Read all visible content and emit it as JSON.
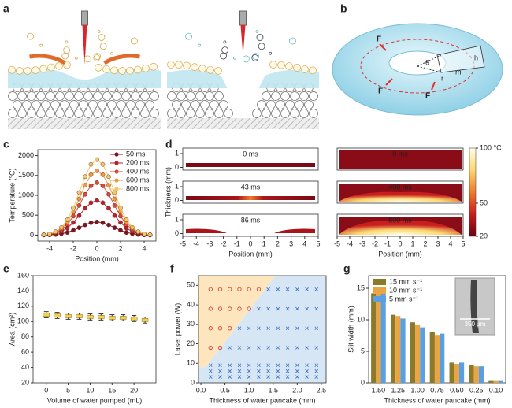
{
  "panel_labels": [
    "a",
    "b",
    "c",
    "d",
    "e",
    "f",
    "g"
  ],
  "diagram_b": {
    "labels": [
      "F",
      "F",
      "F",
      "θ",
      "r",
      "m",
      "h"
    ]
  },
  "chart_data": [
    {
      "type": "line",
      "ylabel": "Temperature (°C)",
      "xlabel": "Position (mm)",
      "x": [
        -4.5,
        -4,
        -3.5,
        -3,
        -2.5,
        -2,
        -1.5,
        -1,
        -0.5,
        0,
        0.5,
        1,
        1.5,
        2,
        2.5,
        3,
        3.5,
        4,
        4.5
      ],
      "xlim": [
        -5,
        5
      ],
      "xticks": [
        -4,
        -2,
        0,
        2,
        4
      ],
      "ylim": [
        -150,
        2150
      ],
      "yticks": [
        0,
        500,
        1000,
        1500,
        2000
      ],
      "series": [
        {
          "name": "50 ms",
          "color": "#7d1520",
          "values": [
            0,
            5,
            15,
            35,
            65,
            120,
            185,
            255,
            310,
            330,
            310,
            255,
            185,
            120,
            65,
            35,
            15,
            5,
            0
          ]
        },
        {
          "name": "200 ms",
          "color": "#b8222c",
          "values": [
            5,
            15,
            40,
            90,
            175,
            315,
            490,
            675,
            815,
            870,
            815,
            675,
            490,
            315,
            175,
            90,
            40,
            15,
            5
          ]
        },
        {
          "name": "400 ms",
          "color": "#d94a3a",
          "values": [
            10,
            25,
            60,
            135,
            270,
            475,
            745,
            1025,
            1240,
            1320,
            1240,
            1025,
            745,
            475,
            270,
            135,
            60,
            25,
            10
          ]
        },
        {
          "name": "600 ms",
          "color": "#ee9a3e",
          "values": [
            10,
            30,
            70,
            165,
            330,
            585,
            910,
            1255,
            1520,
            1620,
            1520,
            1255,
            910,
            585,
            330,
            165,
            70,
            30,
            10
          ]
        },
        {
          "name": "800 ms",
          "color": "#f0c86a",
          "values": [
            10,
            30,
            85,
            190,
            385,
            685,
            1070,
            1470,
            1780,
            1900,
            1780,
            1470,
            1070,
            685,
            385,
            190,
            85,
            30,
            10
          ]
        }
      ]
    },
    {
      "type": "field",
      "ylabel": "Thickness (mm)",
      "xlabel": "Position (mm)",
      "xlim": [
        -5,
        5
      ],
      "xticks": [
        -5,
        -4,
        -3,
        -2,
        -1,
        0,
        1,
        2,
        3,
        4,
        5
      ],
      "ylim": [
        -0.2,
        1.4
      ],
      "yticks": [
        0,
        1
      ],
      "panels": [
        {
          "label": "0 ms"
        },
        {
          "label": "43 ms"
        },
        {
          "label": "86 ms"
        },
        {
          "label": "0 ms"
        },
        {
          "label": "400 ms"
        },
        {
          "label": "800 ms"
        }
      ],
      "colorbar": {
        "lim": [
          20,
          100
        ],
        "ticks": [
          {
            "value": 100,
            "label": "100 °C"
          },
          50,
          20
        ],
        "colormap": [
          "#6e0010",
          "#c81e1e",
          "#f07a2a",
          "#fbd870",
          "#fffde8"
        ]
      }
    },
    {
      "type": "errorbar",
      "ylabel": "Area (cm²)",
      "xlabel": "Volume of water pumped (mL)",
      "color": "#f5d04a",
      "x": [
        0,
        2.5,
        5,
        7.5,
        10,
        12.5,
        15,
        17.5,
        20,
        22.5
      ],
      "values": [
        109,
        108,
        107,
        107,
        106,
        106,
        105,
        105,
        104,
        102
      ],
      "errors": [
        4,
        4,
        4,
        4,
        4,
        4,
        4,
        4,
        4,
        4
      ],
      "xlim": [
        -3,
        25
      ],
      "xticks": [
        0,
        5,
        10,
        15,
        20
      ],
      "ylim": [
        20,
        160
      ],
      "yticks": [
        20,
        40,
        60,
        80,
        100,
        120,
        140,
        160
      ]
    },
    {
      "type": "scatter",
      "ylabel": "Laser power (W)",
      "xlabel": "Thickness of water pancake (mm)",
      "xlim": [
        -0.05,
        2.6
      ],
      "xticks": [
        {
          "value": 0,
          "label": "0.0"
        },
        0.5,
        {
          "value": 1,
          "label": "1.0"
        },
        1.5,
        {
          "value": 2,
          "label": "2.0"
        },
        2.5
      ],
      "ylim": [
        0,
        55
      ],
      "yticks": [
        0,
        10,
        20,
        30,
        40,
        50
      ],
      "regions": [
        {
          "color": "#fde6bd",
          "points": [
            [
              -0.05,
              8
            ],
            [
              0.1,
              8
            ],
            [
              1.55,
              55
            ],
            [
              -0.05,
              55
            ]
          ]
        },
        {
          "color": "#d6e6f5",
          "points": [
            [
              -0.05,
              0
            ],
            [
              2.6,
              0
            ],
            [
              2.6,
              55
            ],
            [
              1.55,
              55
            ],
            [
              0.1,
              8
            ],
            [
              -0.05,
              8
            ]
          ]
        }
      ],
      "series": [
        {
          "marker": "o",
          "color": "#d03030",
          "x": [
            0.2,
            0.2,
            0.2,
            0.2,
            0.4,
            0.4,
            0.4,
            0.4,
            0.6,
            0.6,
            0.6,
            0.8,
            0.8,
            1.0,
            1.0,
            1.2
          ],
          "values": [
            18,
            28,
            38,
            48,
            18,
            28,
            38,
            48,
            28,
            38,
            48,
            38,
            48,
            38,
            48,
            48
          ]
        },
        {
          "marker": "x",
          "color": "#3a70c0",
          "x": [
            0.2,
            0.2,
            0.2,
            0.4,
            0.4,
            0.4,
            0.6,
            0.6,
            0.6,
            0.6,
            0.8,
            0.8,
            0.8,
            0.8,
            0.8,
            1.0,
            1.0,
            1.0,
            1.0,
            1.0,
            1.2,
            1.2,
            1.2,
            1.2,
            1.2,
            1.2,
            1.4,
            1.4,
            1.4,
            1.4,
            1.4,
            1.4,
            1.4,
            1.6,
            1.6,
            1.6,
            1.6,
            1.6,
            1.6,
            1.6,
            1.8,
            1.8,
            1.8,
            1.8,
            1.8,
            1.8,
            1.8,
            2.0,
            2.0,
            2.0,
            2.0,
            2.0,
            2.0,
            2.0,
            2.2,
            2.2,
            2.2,
            2.2,
            2.2,
            2.2,
            2.2,
            2.4,
            2.4,
            2.4,
            2.4,
            2.4,
            2.4,
            2.4
          ],
          "values": [
            3,
            6,
            9,
            3,
            6,
            9,
            3,
            6,
            9,
            18,
            3,
            6,
            9,
            18,
            28,
            3,
            6,
            9,
            18,
            28,
            3,
            6,
            9,
            18,
            28,
            38,
            3,
            6,
            9,
            18,
            28,
            38,
            48,
            3,
            6,
            9,
            18,
            28,
            38,
            48,
            3,
            6,
            9,
            18,
            28,
            38,
            48,
            3,
            6,
            9,
            18,
            28,
            38,
            48,
            3,
            6,
            9,
            18,
            28,
            38,
            48,
            3,
            6,
            9,
            18,
            28,
            38,
            48
          ]
        }
      ]
    },
    {
      "type": "groupedbar",
      "ylabel": "Slit width (mm)",
      "xlabel": "Thickness of water pancake (mm)",
      "categories": [
        "1.50",
        "1.25",
        "1.00",
        "0.75",
        "0.50",
        "0.25",
        "0.10"
      ],
      "ylim": [
        0,
        17
      ],
      "yticks": [
        0,
        5,
        10,
        15
      ],
      "annotation": "350 µm",
      "series": [
        {
          "name": "15 mm s⁻¹",
          "color": "#8a7a2a",
          "values": [
            14.2,
            10.8,
            9.6,
            8.0,
            3.2,
            2.8,
            0.3
          ]
        },
        {
          "name": "10 mm s⁻¹",
          "color": "#eaa444",
          "values": [
            14.3,
            10.6,
            9.2,
            7.6,
            3.0,
            2.6,
            0.3
          ]
        },
        {
          "name": "5 mm s⁻¹",
          "color": "#5aa0e0",
          "values": [
            15.0,
            10.2,
            8.8,
            7.8,
            3.2,
            2.6,
            0.3
          ]
        }
      ]
    }
  ]
}
